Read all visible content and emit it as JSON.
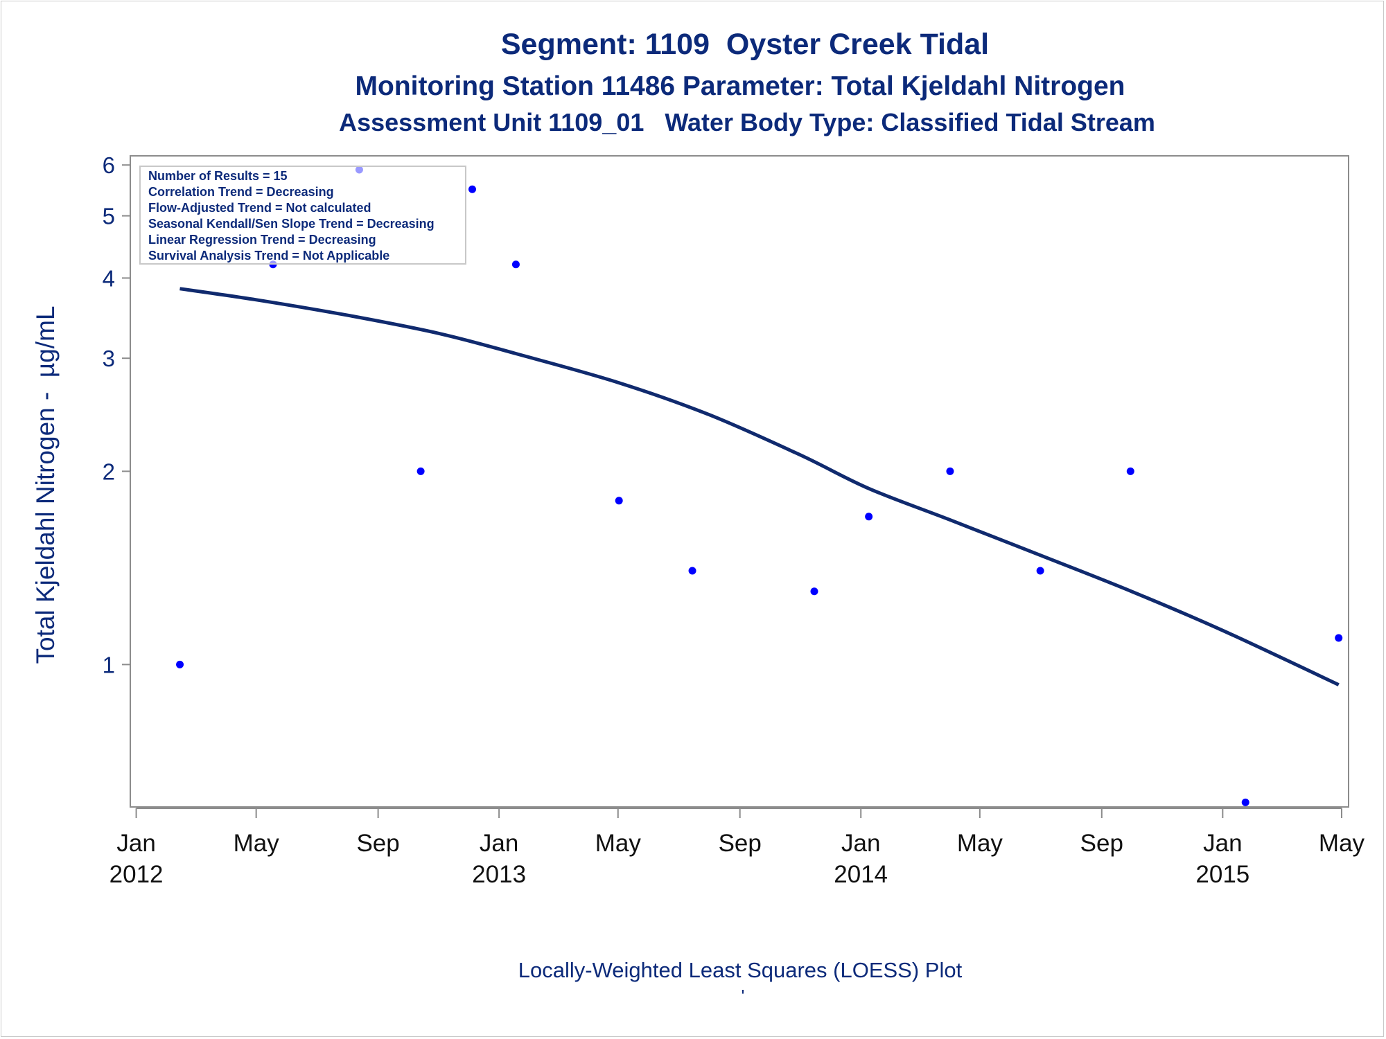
{
  "chart_data": {
    "type": "scatter",
    "title": "Segment: 1109  Oyster Creek Tidal",
    "subtitle": "Monitoring Station 11486 Parameter: Total Kjeldahl Nitrogen",
    "subtitle2": "Assessment Unit 1109_01   Water Body Type: Classified Tidal Stream",
    "xlabel": "Locally-Weighted Least Squares (LOESS) Plot",
    "footnote": "'",
    "ylabel": "Total Kjeldahl Nitrogen -  µg/mL",
    "yscale": "log",
    "ylim": [
      0.6,
      6.2
    ],
    "xlim": [
      "2011-12-26",
      "2015-05-08"
    ],
    "y_ticks": [
      1,
      2,
      3,
      4,
      5,
      6
    ],
    "x_ticks": [
      {
        "date": "2012-01-01",
        "label": "Jan",
        "year": "2012"
      },
      {
        "date": "2012-05-01",
        "label": "May",
        "year": ""
      },
      {
        "date": "2012-09-01",
        "label": "Sep",
        "year": ""
      },
      {
        "date": "2013-01-01",
        "label": "Jan",
        "year": "2013"
      },
      {
        "date": "2013-05-01",
        "label": "May",
        "year": ""
      },
      {
        "date": "2013-09-01",
        "label": "Sep",
        "year": ""
      },
      {
        "date": "2014-01-01",
        "label": "Jan",
        "year": "2014"
      },
      {
        "date": "2014-05-01",
        "label": "May",
        "year": ""
      },
      {
        "date": "2014-09-01",
        "label": "Sep",
        "year": ""
      },
      {
        "date": "2015-01-01",
        "label": "Jan",
        "year": "2015"
      },
      {
        "date": "2015-05-01",
        "label": "May",
        "year": ""
      }
    ],
    "points": [
      {
        "date": "2012-02-14",
        "value": 1.0
      },
      {
        "date": "2012-05-18",
        "value": 4.2
      },
      {
        "date": "2012-08-13",
        "value": 5.9
      },
      {
        "date": "2012-10-14",
        "value": 2.0
      },
      {
        "date": "2012-12-05",
        "value": 5.5
      },
      {
        "date": "2013-01-18",
        "value": 4.2
      },
      {
        "date": "2013-05-02",
        "value": 1.8
      },
      {
        "date": "2013-07-15",
        "value": 1.4
      },
      {
        "date": "2013-11-15",
        "value": 1.3
      },
      {
        "date": "2014-01-09",
        "value": 1.7
      },
      {
        "date": "2014-04-01",
        "value": 2.0
      },
      {
        "date": "2014-07-01",
        "value": 1.4
      },
      {
        "date": "2014-09-30",
        "value": 2.0
      },
      {
        "date": "2015-01-24",
        "value": 0.61
      },
      {
        "date": "2015-04-28",
        "value": 1.1
      }
    ],
    "loess": [
      {
        "date": "2012-02-14",
        "value": 3.85
      },
      {
        "date": "2012-05-01",
        "value": 3.7
      },
      {
        "date": "2012-08-01",
        "value": 3.5
      },
      {
        "date": "2012-11-01",
        "value": 3.28
      },
      {
        "date": "2013-01-18",
        "value": 3.05
      },
      {
        "date": "2013-05-01",
        "value": 2.75
      },
      {
        "date": "2013-08-01",
        "value": 2.45
      },
      {
        "date": "2013-11-01",
        "value": 2.12
      },
      {
        "date": "2014-01-09",
        "value": 1.88
      },
      {
        "date": "2014-04-01",
        "value": 1.68
      },
      {
        "date": "2014-07-01",
        "value": 1.48
      },
      {
        "date": "2014-10-01",
        "value": 1.3
      },
      {
        "date": "2015-01-01",
        "value": 1.13
      },
      {
        "date": "2015-04-28",
        "value": 0.93
      }
    ],
    "stats_box": [
      "Number of Results = 15",
      "Correlation Trend = Decreasing",
      "Flow-Adjusted Trend = Not calculated",
      "Seasonal Kendall/Sen Slope Trend = Decreasing",
      "Linear Regression Trend = Decreasing",
      "Survival Analysis Trend = Not Applicable"
    ],
    "grid": false,
    "colors": {
      "text": "#0c2a7a",
      "line": "#102a6e",
      "point": "#0000ff",
      "axis": "#8c8c8c"
    }
  }
}
